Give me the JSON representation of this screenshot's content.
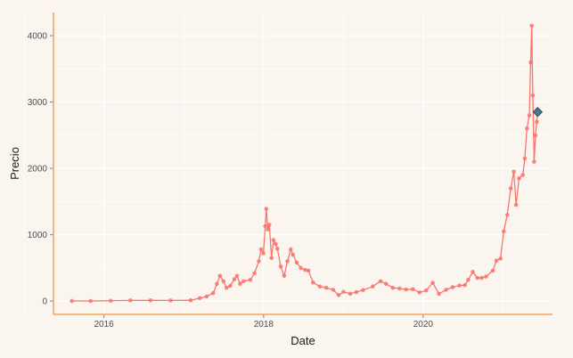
{
  "chart_data": {
    "type": "line",
    "xlabel": "Date",
    "ylabel": "Precio",
    "x_ticks": [
      "2016",
      "2018",
      "2020"
    ],
    "y_ticks": [
      "0",
      "1000",
      "2000",
      "3000",
      "4000"
    ],
    "xlim": [
      "2015-05-15",
      "2021-08-15"
    ],
    "ylim": [
      -200,
      4350
    ],
    "grid": true,
    "legend": "none",
    "colors": {
      "line": "#f8766d",
      "highlight": "#4a7a8c",
      "axis": "#f5a25d",
      "grid": "#ffffff",
      "background": "#fbf5ef"
    },
    "series": [
      {
        "values": [
          [
            "2015-08-07",
            2
          ],
          [
            "2015-11-01",
            1
          ],
          [
            "2016-02-01",
            6
          ],
          [
            "2016-05-01",
            10
          ],
          [
            "2016-08-01",
            11
          ],
          [
            "2016-11-01",
            10
          ],
          [
            "2017-02-01",
            12
          ],
          [
            "2017-03-15",
            45
          ],
          [
            "2017-04-15",
            70
          ],
          [
            "2017-05-15",
            120
          ],
          [
            "2017-06-01",
            260
          ],
          [
            "2017-06-15",
            380
          ],
          [
            "2017-07-01",
            300
          ],
          [
            "2017-07-15",
            200
          ],
          [
            "2017-08-01",
            230
          ],
          [
            "2017-08-20",
            330
          ],
          [
            "2017-09-01",
            380
          ],
          [
            "2017-09-15",
            260
          ],
          [
            "2017-10-01",
            300
          ],
          [
            "2017-11-01",
            320
          ],
          [
            "2017-11-20",
            420
          ],
          [
            "2017-12-10",
            600
          ],
          [
            "2017-12-20",
            780
          ],
          [
            "2017-12-31",
            720
          ],
          [
            "2018-01-08",
            1130
          ],
          [
            "2018-01-13",
            1390
          ],
          [
            "2018-01-20",
            1080
          ],
          [
            "2018-01-27",
            1150
          ],
          [
            "2018-02-06",
            650
          ],
          [
            "2018-02-15",
            920
          ],
          [
            "2018-02-25",
            860
          ],
          [
            "2018-03-05",
            790
          ],
          [
            "2018-03-20",
            520
          ],
          [
            "2018-04-05",
            380
          ],
          [
            "2018-04-20",
            600
          ],
          [
            "2018-05-05",
            780
          ],
          [
            "2018-05-15",
            700
          ],
          [
            "2018-06-01",
            580
          ],
          [
            "2018-06-20",
            500
          ],
          [
            "2018-07-10",
            470
          ],
          [
            "2018-07-25",
            460
          ],
          [
            "2018-08-15",
            280
          ],
          [
            "2018-09-15",
            220
          ],
          [
            "2018-10-15",
            200
          ],
          [
            "2018-11-15",
            170
          ],
          [
            "2018-12-10",
            90
          ],
          [
            "2019-01-01",
            140
          ],
          [
            "2019-02-01",
            110
          ],
          [
            "2019-03-01",
            135
          ],
          [
            "2019-04-01",
            165
          ],
          [
            "2019-05-15",
            220
          ],
          [
            "2019-06-20",
            300
          ],
          [
            "2019-07-15",
            260
          ],
          [
            "2019-08-15",
            200
          ],
          [
            "2019-09-15",
            190
          ],
          [
            "2019-10-15",
            175
          ],
          [
            "2019-11-15",
            180
          ],
          [
            "2019-12-15",
            130
          ],
          [
            "2020-01-15",
            160
          ],
          [
            "2020-02-14",
            275
          ],
          [
            "2020-03-13",
            110
          ],
          [
            "2020-04-15",
            170
          ],
          [
            "2020-05-15",
            210
          ],
          [
            "2020-06-15",
            235
          ],
          [
            "2020-07-10",
            240
          ],
          [
            "2020-07-25",
            320
          ],
          [
            "2020-08-15",
            440
          ],
          [
            "2020-09-05",
            350
          ],
          [
            "2020-09-25",
            350
          ],
          [
            "2020-10-15",
            370
          ],
          [
            "2020-11-15",
            460
          ],
          [
            "2020-12-01",
            610
          ],
          [
            "2020-12-20",
            640
          ],
          [
            "2021-01-04",
            1050
          ],
          [
            "2021-01-20",
            1300
          ],
          [
            "2021-02-05",
            1700
          ],
          [
            "2021-02-19",
            1950
          ],
          [
            "2021-03-01",
            1450
          ],
          [
            "2021-03-15",
            1850
          ],
          [
            "2021-04-01",
            1900
          ],
          [
            "2021-04-10",
            2150
          ],
          [
            "2021-04-20",
            2600
          ],
          [
            "2021-05-01",
            2800
          ],
          [
            "2021-05-07",
            3600
          ],
          [
            "2021-05-12",
            4150
          ],
          [
            "2021-05-17",
            3100
          ],
          [
            "2021-05-23",
            2100
          ],
          [
            "2021-05-29",
            2500
          ],
          [
            "2021-06-04",
            2700
          ],
          [
            "2021-06-08",
            2850
          ]
        ]
      }
    ],
    "highlight_point": [
      "2021-06-08",
      2850
    ]
  }
}
